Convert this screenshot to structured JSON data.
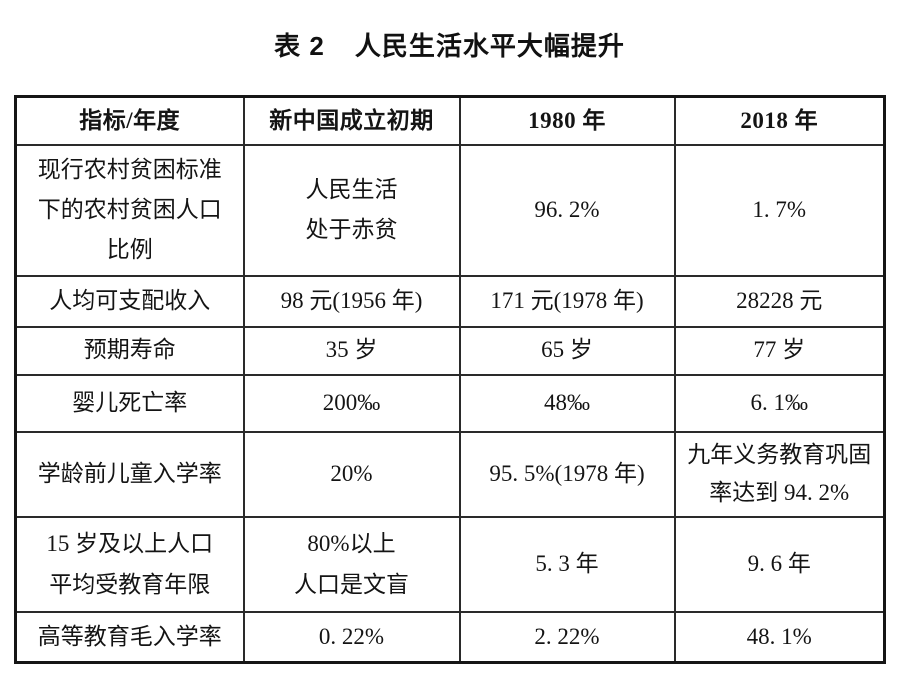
{
  "page": {
    "background": "#ffffff",
    "text_color": "#141414",
    "border_color": "#161616"
  },
  "title": {
    "label": "表 2",
    "text": "人民生活水平大幅提升"
  },
  "table": {
    "headers": [
      "指标/年度",
      "新中国成立初期",
      "1980 年",
      "2018 年"
    ],
    "rows": [
      [
        "现行农村贫困标准\n下的农村贫困人口\n比例",
        "人民生活\n处于赤贫",
        "96. 2%",
        "1. 7%"
      ],
      [
        "人均可支配收入",
        "98 元(1956 年)",
        "171 元(1978 年)",
        "28228 元"
      ],
      [
        "预期寿命",
        "35 岁",
        "65 岁",
        "77 岁"
      ],
      [
        "婴儿死亡率",
        "200‰",
        "48‰",
        "6. 1‰"
      ],
      [
        "学龄前儿童入学率",
        "20%",
        "95. 5%(1978 年)",
        "九年义务教育巩固\n率达到 94. 2%"
      ],
      [
        "15 岁及以上人口\n平均受教育年限",
        "80%以上\n人口是文盲",
        "5. 3 年",
        "9. 6 年"
      ],
      [
        "高等教育毛入学率",
        "0. 22%",
        "2. 22%",
        "48. 1%"
      ]
    ]
  }
}
